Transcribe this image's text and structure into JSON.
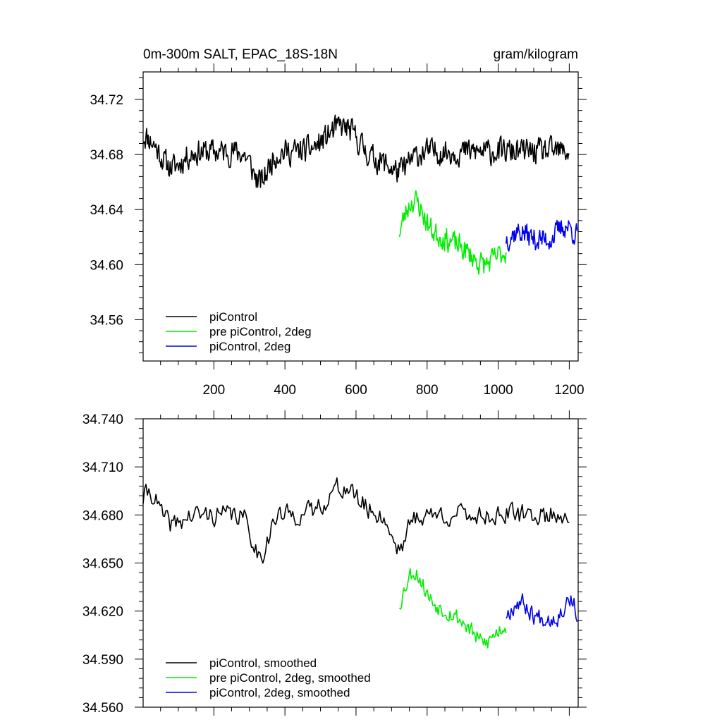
{
  "chart_data": [
    {
      "type": "line",
      "title_left": "0m-300m SALT, EPAC_18S-18N",
      "title_right": "gram/kilogram",
      "xlim": [
        1,
        1225
      ],
      "ylim": [
        34.53,
        34.74
      ],
      "xticks": [
        {
          "v": 200,
          "label": "200"
        },
        {
          "v": 400,
          "label": "400"
        },
        {
          "v": 600,
          "label": "600"
        },
        {
          "v": 800,
          "label": "800"
        },
        {
          "v": 1000,
          "label": "1000"
        },
        {
          "v": 1200,
          "label": "1200"
        }
      ],
      "yticks": [
        {
          "v": 34.56,
          "label": "34.56"
        },
        {
          "v": 34.6,
          "label": "34.60"
        },
        {
          "v": 34.64,
          "label": "34.64"
        },
        {
          "v": 34.68,
          "label": "34.68"
        },
        {
          "v": 34.72,
          "label": "34.72"
        }
      ],
      "legend_position": "bottom-left",
      "series": [
        {
          "name": "piControl",
          "color": "#000000",
          "x_start": 1,
          "x_end": 1200,
          "n": 600,
          "base": 34.682,
          "amp": 0.013,
          "features": [
            [
              0,
              50,
              0.012
            ],
            [
              80,
              40,
              -0.012
            ],
            [
              330,
              30,
              -0.022
            ],
            [
              560,
              60,
              0.018
            ],
            [
              650,
              40,
              -0.006
            ],
            [
              720,
              40,
              -0.014
            ]
          ],
          "seed": 11
        },
        {
          "name": "pre piControl, 2deg",
          "color": "#00ee00",
          "x_start": 722,
          "x_end": 1022,
          "n": 150,
          "base": 34.61,
          "amp": 0.012,
          "features": [
            [
              760,
              40,
              0.034
            ],
            [
              830,
              60,
              0.01
            ],
            [
              960,
              40,
              -0.01
            ]
          ],
          "seed": 23
        },
        {
          "name": "piControl, 2deg",
          "color": "#0000ee",
          "x_start": 1022,
          "x_end": 1222,
          "n": 100,
          "base": 34.618,
          "amp": 0.012,
          "features": [
            [
              1060,
              30,
              0.006
            ],
            [
              1190,
              30,
              0.01
            ]
          ],
          "seed": 37
        }
      ]
    },
    {
      "type": "line",
      "xlim": [
        1,
        1225
      ],
      "ylim": [
        34.56,
        34.74
      ],
      "xticks": [
        {
          "v": 200,
          "label": ""
        },
        {
          "v": 400,
          "label": ""
        },
        {
          "v": 600,
          "label": ""
        },
        {
          "v": 800,
          "label": ""
        },
        {
          "v": 1000,
          "label": ""
        },
        {
          "v": 1200,
          "label": ""
        }
      ],
      "yticks": [
        {
          "v": 34.56,
          "label": "34.560"
        },
        {
          "v": 34.59,
          "label": "34.590"
        },
        {
          "v": 34.62,
          "label": "34.620"
        },
        {
          "v": 34.65,
          "label": "34.650"
        },
        {
          "v": 34.68,
          "label": "34.680"
        },
        {
          "v": 34.71,
          "label": "34.710"
        },
        {
          "v": 34.74,
          "label": "34.740"
        }
      ],
      "legend_position": "bottom-left",
      "series": [
        {
          "name": "piControl, smoothed",
          "color": "#000000",
          "x_start": 1,
          "x_end": 1200,
          "n": 300,
          "base": 34.68,
          "amp": 0.009,
          "features": [
            [
              20,
              30,
              0.015
            ],
            [
              80,
              40,
              -0.006
            ],
            [
              330,
              30,
              -0.025
            ],
            [
              560,
              60,
              0.017
            ],
            [
              720,
              30,
              -0.02
            ]
          ],
          "seed": 41
        },
        {
          "name": "pre piControl, 2deg, smoothed",
          "color": "#00ee00",
          "x_start": 722,
          "x_end": 1022,
          "n": 100,
          "base": 34.612,
          "amp": 0.008,
          "features": [
            [
              760,
              40,
              0.03
            ],
            [
              830,
              60,
              0.01
            ],
            [
              960,
              40,
              -0.012
            ]
          ],
          "seed": 53
        },
        {
          "name": "piControl, 2deg, smoothed",
          "color": "#0000ee",
          "x_start": 1022,
          "x_end": 1222,
          "n": 70,
          "base": 34.616,
          "amp": 0.008,
          "features": [
            [
              1060,
              30,
              0.01
            ],
            [
              1200,
              20,
              0.012
            ]
          ],
          "seed": 67
        }
      ]
    }
  ]
}
